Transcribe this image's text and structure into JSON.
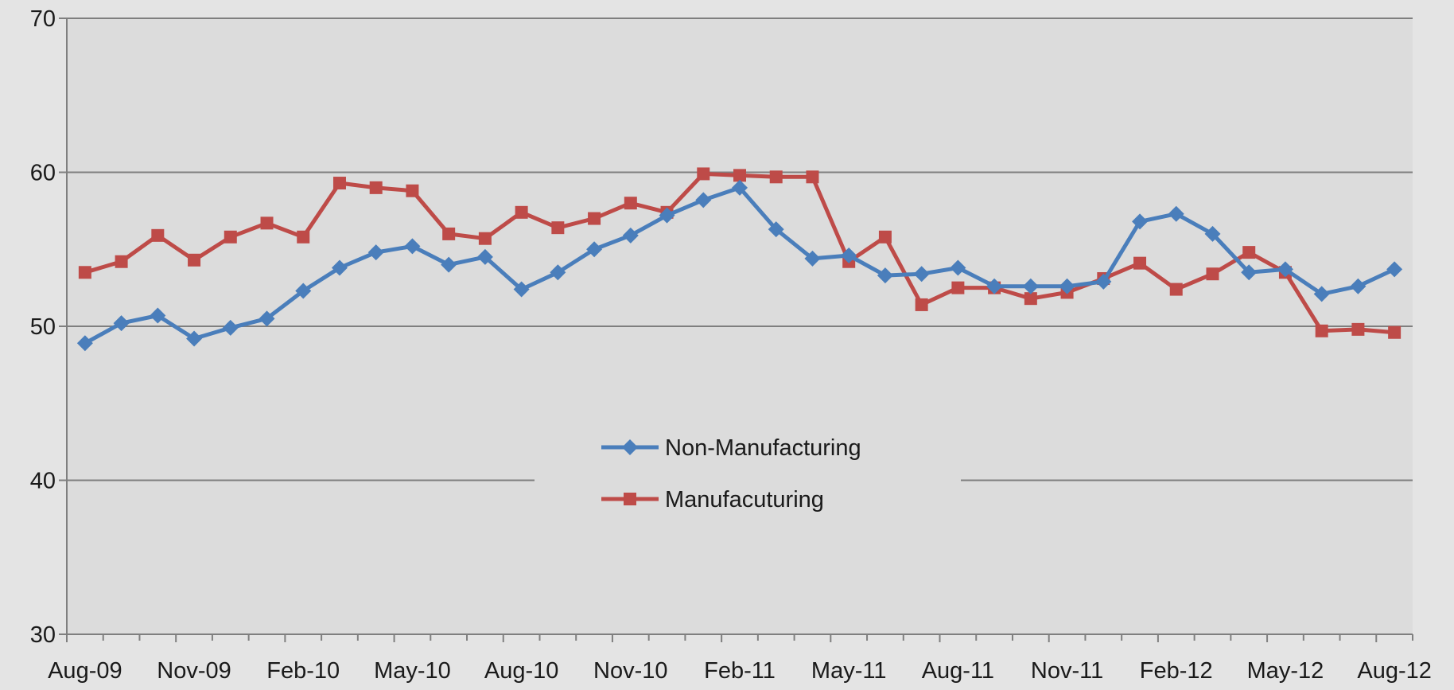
{
  "chart_data": {
    "type": "line",
    "title": "",
    "xlabel": "",
    "ylabel": "",
    "ylim": [
      30,
      70
    ],
    "yticks": [
      {
        "value": 30,
        "label": "30",
        "color": "#1a1a1a"
      },
      {
        "value": 40,
        "label": "40",
        "color": "#1a1a1a"
      },
      {
        "value": 50,
        "label": "50",
        "color": "#c00000"
      },
      {
        "value": 60,
        "label": "60",
        "color": "#1a1a1a"
      },
      {
        "value": 70,
        "label": "70",
        "color": "#1a1a1a"
      }
    ],
    "gridlines": [
      40,
      50,
      60,
      70
    ],
    "categories": [
      "Aug-09",
      "Sep-09",
      "Oct-09",
      "Nov-09",
      "Dec-09",
      "Jan-10",
      "Feb-10",
      "Mar-10",
      "Apr-10",
      "May-10",
      "Jun-10",
      "Jul-10",
      "Aug-10",
      "Sep-10",
      "Oct-10",
      "Nov-10",
      "Dec-10",
      "Jan-11",
      "Feb-11",
      "Mar-11",
      "Apr-11",
      "May-11",
      "Jun-11",
      "Jul-11",
      "Aug-11",
      "Sep-11",
      "Oct-11",
      "Nov-11",
      "Dec-11",
      "Jan-12",
      "Feb-12",
      "Mar-12",
      "Apr-12",
      "May-12",
      "Jun-12",
      "Jul-12",
      "Aug-12"
    ],
    "xtick_labels_shown": [
      "Aug-09",
      "Nov-09",
      "Feb-10",
      "May-10",
      "Aug-10",
      "Nov-10",
      "Feb-11",
      "May-11",
      "Aug-11",
      "Nov-11",
      "Feb-12",
      "May-12",
      "Aug-12"
    ],
    "legend_position": "center",
    "series": [
      {
        "name": "Non-Manufacturing",
        "color": "#4a7ebb",
        "marker": "diamond",
        "values": [
          48.9,
          50.2,
          50.7,
          49.2,
          49.9,
          50.5,
          52.3,
          53.8,
          54.8,
          55.2,
          54.0,
          54.5,
          52.4,
          53.5,
          55.0,
          55.9,
          57.2,
          58.2,
          59.0,
          56.3,
          54.4,
          54.6,
          53.3,
          53.4,
          53.8,
          52.6,
          52.6,
          52.6,
          52.9,
          56.8,
          57.3,
          56.0,
          53.5,
          53.7,
          52.1,
          52.6,
          53.7
        ]
      },
      {
        "name": "Manufacuturing",
        "color": "#be4b48",
        "marker": "square",
        "values": [
          53.5,
          54.2,
          55.9,
          54.3,
          55.8,
          56.7,
          55.8,
          59.3,
          59.0,
          58.8,
          56.0,
          55.7,
          57.4,
          56.4,
          57.0,
          58.0,
          57.4,
          59.9,
          59.8,
          59.7,
          59.7,
          54.2,
          55.8,
          51.4,
          52.5,
          52.5,
          51.8,
          52.2,
          53.1,
          54.1,
          52.4,
          53.4,
          54.8,
          53.5,
          49.7,
          49.8,
          49.6
        ]
      }
    ]
  }
}
